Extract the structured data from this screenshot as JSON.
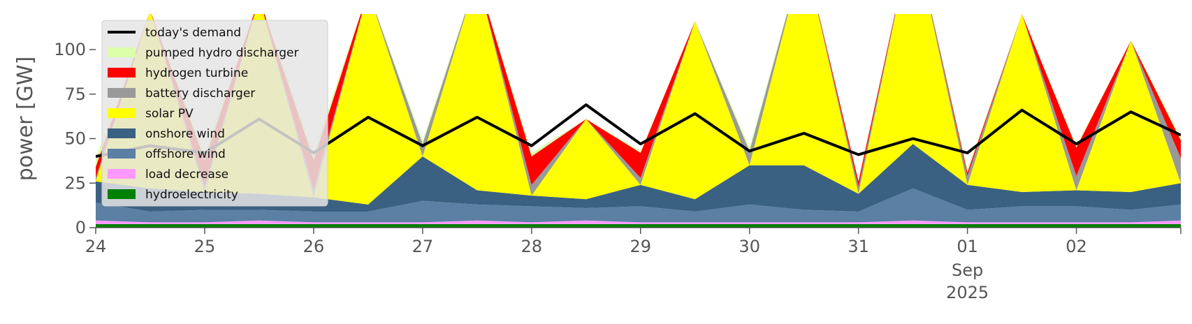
{
  "chart_data": {
    "type": "area",
    "ylabel": "power [GW]",
    "ylim": [
      0,
      120
    ],
    "xlim": [
      "2025-08-24T00:00",
      "2025-09-02T23:00"
    ],
    "yticks": [
      0,
      25,
      50,
      75,
      100
    ],
    "ytick_labels": [
      "0",
      "25",
      "50",
      "75",
      "100"
    ],
    "xticks": [
      {
        "x": "2025-08-24",
        "label": "24"
      },
      {
        "x": "2025-08-25",
        "label": "25"
      },
      {
        "x": "2025-08-26",
        "label": "26"
      },
      {
        "x": "2025-08-27",
        "label": "27"
      },
      {
        "x": "2025-08-28",
        "label": "28"
      },
      {
        "x": "2025-08-29",
        "label": "29"
      },
      {
        "x": "2025-08-30",
        "label": "30"
      },
      {
        "x": "2025-08-31",
        "label": "31"
      },
      {
        "x": "2025-09-01",
        "label": "01"
      },
      {
        "x": "2025-09-02",
        "label": "02"
      }
    ],
    "xtick_sublabels": {
      "x": "2025-09-01",
      "lines": [
        "Sep",
        "2025"
      ]
    },
    "grid": false,
    "legend_position": "upper-left",
    "x": [
      "2025-08-24T00:00",
      "2025-08-24T12:00",
      "2025-08-25T00:00",
      "2025-08-25T12:00",
      "2025-08-26T00:00",
      "2025-08-26T12:00",
      "2025-08-27T00:00",
      "2025-08-27T12:00",
      "2025-08-28T00:00",
      "2025-08-28T12:00",
      "2025-08-29T00:00",
      "2025-08-29T12:00",
      "2025-08-30T00:00",
      "2025-08-30T12:00",
      "2025-08-31T00:00",
      "2025-08-31T12:00",
      "2025-09-01T00:00",
      "2025-09-01T12:00",
      "2025-09-02T00:00",
      "2025-09-02T12:00",
      "2025-09-02T23:00"
    ],
    "series": [
      {
        "name": "hydroelectricity",
        "color": "#008000",
        "kind": "area",
        "values": [
          2,
          2,
          2,
          2,
          2,
          2,
          2,
          2,
          2,
          2,
          2,
          2,
          2,
          2,
          2,
          2,
          2,
          2,
          2,
          2,
          2
        ]
      },
      {
        "name": "load decrease",
        "color": "#ff99ff",
        "kind": "area",
        "values": [
          2,
          1,
          1,
          2,
          1,
          1,
          1,
          2,
          1,
          2,
          1,
          1,
          1,
          1,
          1,
          2,
          1,
          1,
          1,
          1,
          2
        ]
      },
      {
        "name": "offshore wind",
        "color": "#5b80a3",
        "kind": "area",
        "values": [
          10,
          6,
          7,
          6,
          6,
          6,
          12,
          9,
          9,
          7,
          9,
          6,
          10,
          7,
          6,
          18,
          7,
          9,
          9,
          7,
          9
        ]
      },
      {
        "name": "onshore wind",
        "color": "#3b6182",
        "kind": "area",
        "values": [
          12,
          13,
          10,
          9,
          8,
          4,
          25,
          8,
          6,
          5,
          12,
          7,
          22,
          25,
          10,
          25,
          14,
          8,
          9,
          10,
          12
        ]
      },
      {
        "name": "solar PV",
        "color": "#ffff00",
        "kind": "area",
        "values": [
          0,
          100,
          0,
          110,
          0,
          120,
          0,
          120,
          0,
          45,
          0,
          100,
          0,
          120,
          0,
          120,
          0,
          100,
          0,
          85,
          0
        ]
      },
      {
        "name": "battery discharger",
        "color": "#999999",
        "kind": "area",
        "values": [
          2,
          0,
          3,
          0,
          4,
          0,
          7,
          0,
          6,
          0,
          4,
          0,
          8,
          0,
          4,
          0,
          5,
          0,
          8,
          0,
          14
        ]
      },
      {
        "name": "hydrogen turbine",
        "color": "#ff0000",
        "kind": "area",
        "values": [
          6,
          0,
          15,
          0,
          17,
          0,
          0,
          0,
          16,
          0,
          14,
          0,
          0,
          0,
          3,
          0,
          2,
          0,
          16,
          0,
          10
        ]
      },
      {
        "name": "pumped hydro discharger",
        "color": "#dcffaa",
        "kind": "area",
        "values": [
          5,
          0,
          4,
          0,
          4,
          0,
          2,
          0,
          2,
          0,
          1,
          0,
          2,
          0,
          1,
          0,
          2,
          0,
          1,
          0,
          2
        ]
      },
      {
        "name": "today's demand",
        "color": "#000000",
        "kind": "line",
        "values": [
          40,
          46,
          42,
          61,
          42,
          62,
          46,
          62,
          46,
          69,
          47,
          64,
          43,
          53,
          41,
          50,
          42,
          66,
          47,
          65,
          52
        ]
      }
    ]
  }
}
